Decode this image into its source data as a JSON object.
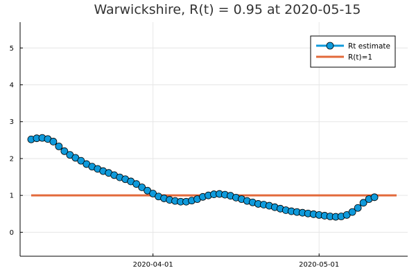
{
  "chart_data": {
    "type": "line",
    "title": "Warwickshire, R(t) = 0.95 at 2020-05-15",
    "xlabel": "",
    "ylabel": "",
    "x_axis": {
      "start": "2020-03-08",
      "end": "2020-05-17",
      "ticks": [
        {
          "date": "2020-04-01",
          "label": "2020-04-01"
        },
        {
          "date": "2020-05-01",
          "label": "2020-05-01"
        }
      ]
    },
    "ylim": [
      -0.65,
      5.7
    ],
    "yticks": [
      {
        "value": 0,
        "label": "0"
      },
      {
        "value": 1,
        "label": "1"
      },
      {
        "value": 2,
        "label": "2"
      },
      {
        "value": 3,
        "label": "3"
      },
      {
        "value": 4,
        "label": "4"
      },
      {
        "value": 5,
        "label": "5"
      }
    ],
    "grid": true,
    "legend_position": "top-right",
    "colors": {
      "rt": "#0f9adb",
      "ref": "#e2693a",
      "marker_edge": "#000000",
      "axis": "#000000",
      "grid": "#e6e6e6"
    },
    "series": [
      {
        "name": "Rt estimate",
        "x_start": "2020-03-10",
        "values": [
          2.52,
          2.55,
          2.56,
          2.53,
          2.46,
          2.33,
          2.2,
          2.1,
          2.02,
          1.94,
          1.85,
          1.78,
          1.72,
          1.66,
          1.61,
          1.55,
          1.49,
          1.44,
          1.38,
          1.31,
          1.22,
          1.13,
          1.05,
          0.97,
          0.92,
          0.88,
          0.85,
          0.83,
          0.83,
          0.86,
          0.9,
          0.96,
          1.0,
          1.03,
          1.04,
          1.02,
          0.99,
          0.94,
          0.9,
          0.85,
          0.81,
          0.77,
          0.75,
          0.72,
          0.68,
          0.64,
          0.6,
          0.57,
          0.55,
          0.53,
          0.51,
          0.49,
          0.47,
          0.45,
          0.43,
          0.42,
          0.43,
          0.47,
          0.55,
          0.66,
          0.8,
          0.9,
          0.95
        ]
      },
      {
        "name": "R(t)=1",
        "x": [
          "2020-03-10",
          "2020-05-15"
        ],
        "values": [
          1,
          1
        ]
      }
    ]
  }
}
